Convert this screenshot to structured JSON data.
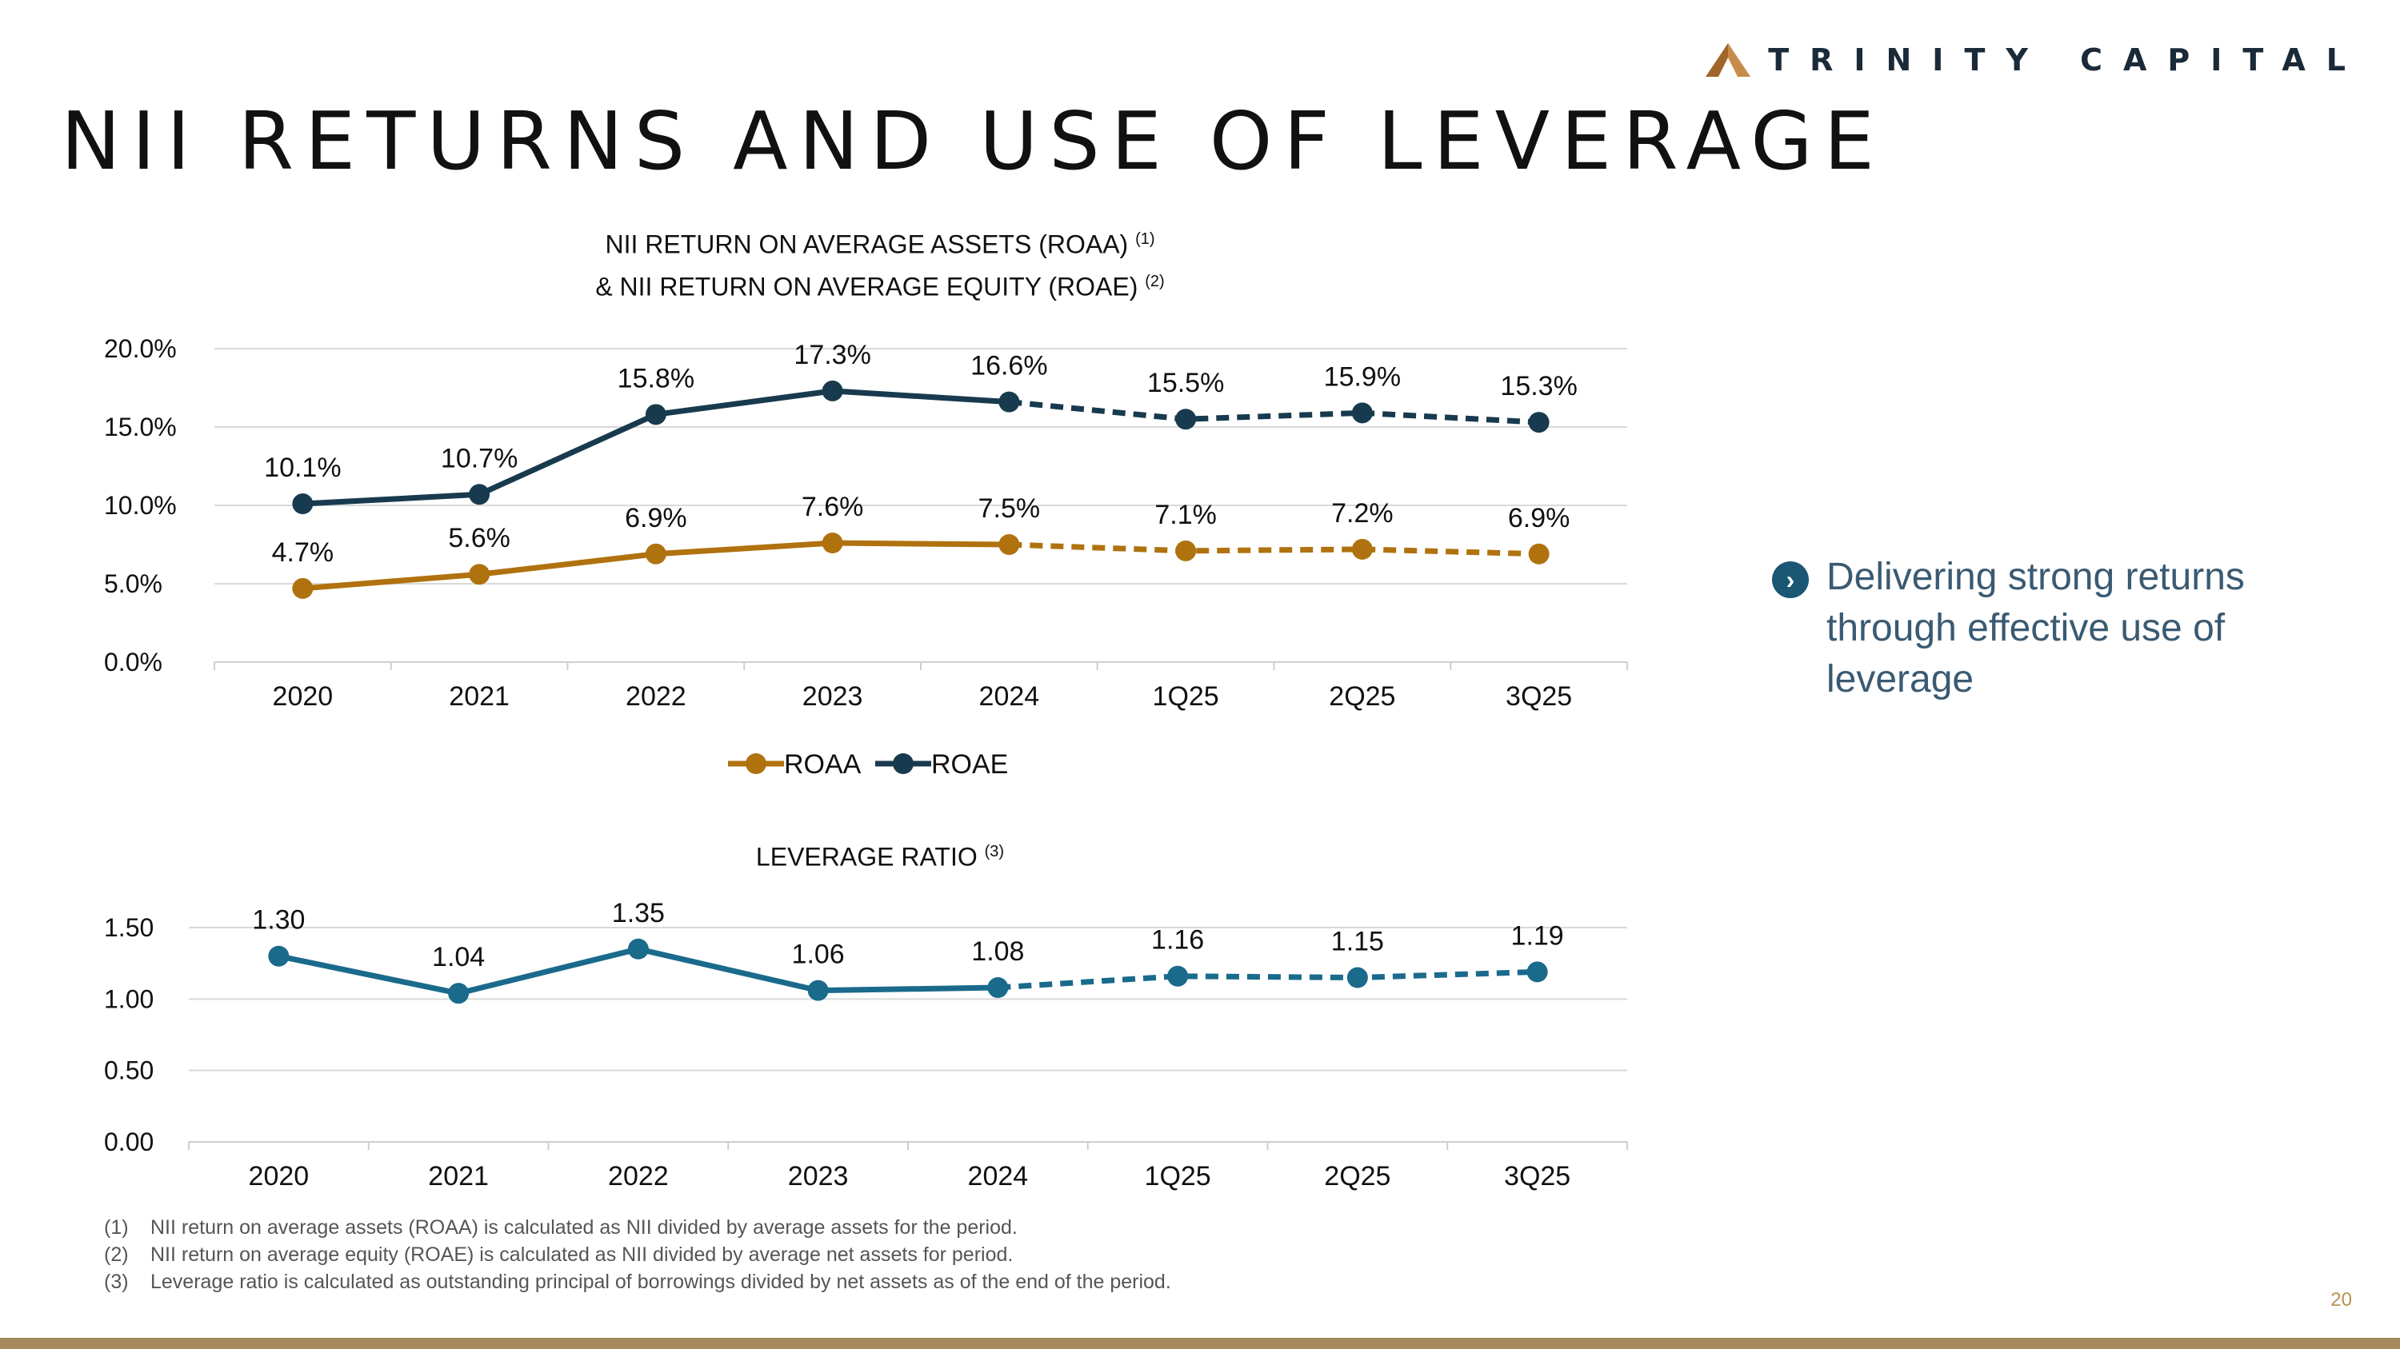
{
  "brand": {
    "name": "TRINITY CAPITAL"
  },
  "page": {
    "title": "NII RETURNS AND USE OF LEVERAGE",
    "number": "20"
  },
  "chart1": {
    "title_line1": "NII RETURN ON AVERAGE ASSETS (ROAA)",
    "title_line1_ref": "(1)",
    "title_line2": "& NII RETURN ON AVERAGE EQUITY (ROAE)",
    "title_line2_ref": "(2)"
  },
  "chart2": {
    "title": "LEVERAGE RATIO",
    "title_ref": "(3)"
  },
  "bullet": {
    "text": "Delivering strong returns through effective use of leverage"
  },
  "footnotes": [
    {
      "num": "(1)",
      "text": "NII return on average assets (ROAA) is calculated as NII divided by average assets for the period."
    },
    {
      "num": "(2)",
      "text": "NII return on average equity (ROAE) is calculated as NII divided by average net assets for period."
    },
    {
      "num": "(3)",
      "text": "Leverage ratio is calculated as outstanding principal of borrowings divided by net assets as of the end of the period."
    }
  ],
  "colors": {
    "roaa": "#b0720f",
    "roae": "#183a4e",
    "leverage": "#1a6a8c",
    "accent": "#a48a5c"
  },
  "chart_data": [
    {
      "type": "line",
      "categories": [
        "2020",
        "2021",
        "2022",
        "2023",
        "2024",
        "1Q25",
        "2Q25",
        "3Q25"
      ],
      "series": [
        {
          "name": "ROAA",
          "values": [
            4.7,
            5.6,
            6.9,
            7.6,
            7.5,
            7.1,
            7.2,
            6.9
          ],
          "labels": [
            "4.7%",
            "5.6%",
            "6.9%",
            "7.6%",
            "7.5%",
            "7.1%",
            "7.2%",
            "6.9%"
          ],
          "dashed_from_index": 4
        },
        {
          "name": "ROAE",
          "values": [
            10.1,
            10.7,
            15.8,
            17.3,
            16.6,
            15.5,
            15.9,
            15.3
          ],
          "labels": [
            "10.1%",
            "10.7%",
            "15.8%",
            "17.3%",
            "16.6%",
            "15.5%",
            "15.9%",
            "15.3%"
          ],
          "dashed_from_index": 4
        }
      ],
      "ylim": [
        0,
        20
      ],
      "yticks": [
        0,
        5,
        10,
        15,
        20
      ],
      "ytick_labels": [
        "0.0%",
        "5.0%",
        "10.0%",
        "15.0%",
        "20.0%"
      ],
      "legend": [
        "ROAA",
        "ROAE"
      ],
      "legend_position": "bottom",
      "grid": true
    },
    {
      "type": "line",
      "categories": [
        "2020",
        "2021",
        "2022",
        "2023",
        "2024",
        "1Q25",
        "2Q25",
        "3Q25"
      ],
      "series": [
        {
          "name": "Leverage Ratio",
          "values": [
            1.3,
            1.04,
            1.35,
            1.06,
            1.08,
            1.16,
            1.15,
            1.19
          ],
          "labels": [
            "1.30",
            "1.04",
            "1.35",
            "1.06",
            "1.08",
            "1.16",
            "1.15",
            "1.19"
          ],
          "dashed_from_index": 4
        }
      ],
      "ylim": [
        0,
        1.5
      ],
      "yticks": [
        0,
        0.5,
        1.0,
        1.5
      ],
      "ytick_labels": [
        "0.00",
        "0.50",
        "1.00",
        "1.50"
      ],
      "grid": true
    }
  ]
}
